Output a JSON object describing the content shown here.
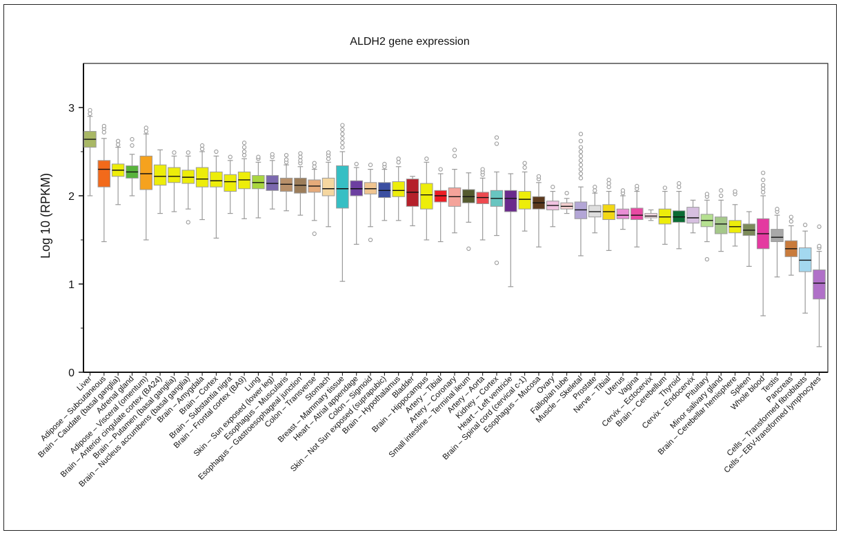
{
  "chart_data": {
    "type": "box",
    "title": "ALDH2 gene expression",
    "xlabel": "",
    "ylabel": "Log 10 (RPKM)",
    "ylim": [
      0,
      3.5
    ],
    "yticks": [
      0,
      1,
      2,
      3
    ],
    "grid": false,
    "legend": "none",
    "categories": [
      {
        "label": "Liver",
        "color": "#a9b865",
        "q1": 2.55,
        "median": 2.64,
        "q3": 2.73,
        "wlow": 2.0,
        "whigh": 2.9,
        "outliers": [
          2.93,
          2.97
        ]
      },
      {
        "label": "Adipose – Subcutaneous",
        "color": "#f26a1b",
        "q1": 2.1,
        "median": 2.3,
        "q3": 2.4,
        "wlow": 1.48,
        "whigh": 2.65,
        "outliers": [
          2.72,
          2.76,
          2.79
        ]
      },
      {
        "label": "Brain – Caudate (basal ganglia)",
        "color": "#eded0a",
        "q1": 2.22,
        "median": 2.29,
        "q3": 2.36,
        "wlow": 1.9,
        "whigh": 2.55,
        "outliers": [
          2.58,
          2.62
        ]
      },
      {
        "label": "Adrenal gland",
        "color": "#58b33c",
        "q1": 2.2,
        "median": 2.27,
        "q3": 2.34,
        "wlow": 2.0,
        "whigh": 2.47,
        "outliers": [
          2.57,
          2.64
        ]
      },
      {
        "label": "Adipose – Visceral (omentum)",
        "color": "#f5a21e",
        "q1": 2.07,
        "median": 2.25,
        "q3": 2.45,
        "wlow": 1.5,
        "whigh": 2.7,
        "outliers": [
          2.73,
          2.77
        ]
      },
      {
        "label": "Brain – Anterior cingulate cortex (BA24)",
        "color": "#eded0a",
        "q1": 2.12,
        "median": 2.22,
        "q3": 2.35,
        "wlow": 1.8,
        "whigh": 2.52,
        "outliers": []
      },
      {
        "label": "Brain – Putamen (basal ganglia)",
        "color": "#eded0a",
        "q1": 2.15,
        "median": 2.22,
        "q3": 2.32,
        "wlow": 1.82,
        "whigh": 2.45,
        "outliers": [
          2.49
        ]
      },
      {
        "label": "Brain – Nucleus accumbens (basal ganglia)",
        "color": "#eded0a",
        "q1": 2.14,
        "median": 2.21,
        "q3": 2.29,
        "wlow": 1.85,
        "whigh": 2.45,
        "outliers": [
          1.7,
          2.49
        ]
      },
      {
        "label": "Brain – Amygdala",
        "color": "#eded0a",
        "q1": 2.1,
        "median": 2.19,
        "q3": 2.32,
        "wlow": 1.73,
        "whigh": 2.5,
        "outliers": [
          2.53,
          2.57
        ]
      },
      {
        "label": "Brain – Cortex",
        "color": "#eded0a",
        "q1": 2.1,
        "median": 2.17,
        "q3": 2.27,
        "wlow": 1.52,
        "whigh": 2.45,
        "outliers": [
          2.5
        ]
      },
      {
        "label": "Brain – Substantia nigra",
        "color": "#eded0a",
        "q1": 2.05,
        "median": 2.16,
        "q3": 2.24,
        "wlow": 1.8,
        "whigh": 2.4,
        "outliers": [
          2.44
        ]
      },
      {
        "label": "Brain – Frontal cortex (BA9)",
        "color": "#eded0a",
        "q1": 2.08,
        "median": 2.18,
        "q3": 2.27,
        "wlow": 1.74,
        "whigh": 2.42,
        "outliers": [
          2.46,
          2.5,
          2.55,
          2.6
        ]
      },
      {
        "label": "Lung",
        "color": "#a9d63f",
        "q1": 2.08,
        "median": 2.15,
        "q3": 2.23,
        "wlow": 1.75,
        "whigh": 2.38,
        "outliers": [
          2.42,
          2.44
        ]
      },
      {
        "label": "Skin – Sun exposed (lower leg)",
        "color": "#7b68ae",
        "q1": 2.06,
        "median": 2.14,
        "q3": 2.23,
        "wlow": 1.85,
        "whigh": 2.4,
        "outliers": [
          2.44,
          2.47
        ]
      },
      {
        "label": "Esophagus – Muscularis",
        "color": "#b8906a",
        "q1": 2.05,
        "median": 2.13,
        "q3": 2.2,
        "wlow": 1.83,
        "whigh": 2.35,
        "outliers": [
          2.38,
          2.41,
          2.46
        ]
      },
      {
        "label": "Esophagus – Gastroesophageal junction",
        "color": "#9c7d5a",
        "q1": 2.03,
        "median": 2.12,
        "q3": 2.2,
        "wlow": 1.78,
        "whigh": 2.33,
        "outliers": [
          2.37,
          2.4,
          2.44,
          2.48
        ]
      },
      {
        "label": "Colon – Transverse",
        "color": "#e6ab7a",
        "q1": 2.04,
        "median": 2.11,
        "q3": 2.18,
        "wlow": 1.72,
        "whigh": 2.3,
        "outliers": [
          1.57,
          2.33,
          2.37
        ]
      },
      {
        "label": "Stomach",
        "color": "#f5d7a0",
        "q1": 2.0,
        "median": 2.08,
        "q3": 2.2,
        "wlow": 1.65,
        "whigh": 2.38,
        "outliers": [
          2.42,
          2.46,
          2.49
        ]
      },
      {
        "label": "Breast – Mammary tissue",
        "color": "#36bfc4",
        "q1": 1.86,
        "median": 2.08,
        "q3": 2.34,
        "wlow": 1.03,
        "whigh": 2.5,
        "outliers": [
          2.55,
          2.6,
          2.65,
          2.7,
          2.75,
          2.8
        ]
      },
      {
        "label": "Heart – Atrial appendage",
        "color": "#6c3fa0",
        "q1": 2.0,
        "median": 2.08,
        "q3": 2.17,
        "wlow": 1.45,
        "whigh": 2.32,
        "outliers": [
          2.36
        ]
      },
      {
        "label": "Colon – Sigmoid",
        "color": "#f0c590",
        "q1": 2.02,
        "median": 2.08,
        "q3": 2.15,
        "wlow": 1.65,
        "whigh": 2.3,
        "outliers": [
          1.5,
          2.35
        ]
      },
      {
        "label": "Skin – Not Sun exposed (suprapubic)",
        "color": "#3b4fa1",
        "q1": 1.98,
        "median": 2.06,
        "q3": 2.15,
        "wlow": 1.72,
        "whigh": 2.3,
        "outliers": [
          2.33,
          2.36
        ]
      },
      {
        "label": "Brain – Hypothalamus",
        "color": "#eded0a",
        "q1": 1.99,
        "median": 2.06,
        "q3": 2.16,
        "wlow": 1.72,
        "whigh": 2.33,
        "outliers": [
          2.38,
          2.42
        ]
      },
      {
        "label": "Bladder",
        "color": "#b5202b",
        "q1": 1.88,
        "median": 2.04,
        "q3": 2.19,
        "wlow": 1.66,
        "whigh": 2.22,
        "outliers": []
      },
      {
        "label": "Brain – Hippocampus",
        "color": "#eded0a",
        "q1": 1.85,
        "median": 2.01,
        "q3": 2.14,
        "wlow": 1.5,
        "whigh": 2.38,
        "outliers": [
          2.42
        ]
      },
      {
        "label": "Artery – Tibial",
        "color": "#ed1c24",
        "q1": 1.93,
        "median": 2.0,
        "q3": 2.06,
        "wlow": 1.48,
        "whigh": 2.25,
        "outliers": [
          2.3
        ]
      },
      {
        "label": "Artery – Coronary",
        "color": "#f4a39a",
        "q1": 1.88,
        "median": 1.99,
        "q3": 2.09,
        "wlow": 1.58,
        "whigh": 2.3,
        "outliers": [
          2.45,
          2.52
        ]
      },
      {
        "label": "Small intestine – Terminal ileum",
        "color": "#545a2e",
        "q1": 1.92,
        "median": 1.99,
        "q3": 2.07,
        "wlow": 1.7,
        "whigh": 2.26,
        "outliers": [
          1.4
        ]
      },
      {
        "label": "Artery – Aorta",
        "color": "#ed4a50",
        "q1": 1.91,
        "median": 1.98,
        "q3": 2.04,
        "wlow": 1.5,
        "whigh": 2.2,
        "outliers": [
          2.24,
          2.27,
          2.3
        ]
      },
      {
        "label": "Kidney – Cortex",
        "color": "#68c5c0",
        "q1": 1.88,
        "median": 1.97,
        "q3": 2.06,
        "wlow": 1.55,
        "whigh": 2.27,
        "outliers": [
          1.24,
          2.59,
          2.66
        ]
      },
      {
        "label": "Heart – Left ventricle",
        "color": "#6a2a8c",
        "q1": 1.82,
        "median": 1.97,
        "q3": 2.06,
        "wlow": 0.97,
        "whigh": 2.25,
        "outliers": []
      },
      {
        "label": "Brain – Spinal cord (cervical c-1)",
        "color": "#eded0a",
        "q1": 1.85,
        "median": 1.96,
        "q3": 2.05,
        "wlow": 1.6,
        "whigh": 2.27,
        "outliers": [
          2.32,
          2.37
        ]
      },
      {
        "label": "Esophagus – Mucosa",
        "color": "#5c3a1e",
        "q1": 1.85,
        "median": 1.92,
        "q3": 1.99,
        "wlow": 1.42,
        "whigh": 2.15,
        "outliers": [
          2.19,
          2.22
        ]
      },
      {
        "label": "Ovary",
        "color": "#f0c3e0",
        "q1": 1.84,
        "median": 1.89,
        "q3": 1.94,
        "wlow": 1.65,
        "whigh": 2.05,
        "outliers": [
          2.1
        ]
      },
      {
        "label": "Fallopian tube",
        "color": "#f5d0d0",
        "q1": 1.85,
        "median": 1.88,
        "q3": 1.92,
        "wlow": 1.8,
        "whigh": 1.97,
        "outliers": [
          2.03
        ]
      },
      {
        "label": "Muscle – Skeletal",
        "color": "#b3a6d6",
        "q1": 1.74,
        "median": 1.84,
        "q3": 1.93,
        "wlow": 1.32,
        "whigh": 2.1,
        "outliers": [
          2.2,
          2.25,
          2.3,
          2.35,
          2.4,
          2.45,
          2.5,
          2.55,
          2.62,
          2.7
        ]
      },
      {
        "label": "Prostate",
        "color": "#dedede",
        "q1": 1.76,
        "median": 1.82,
        "q3": 1.89,
        "wlow": 1.58,
        "whigh": 2.03,
        "outliers": [
          2.06,
          2.1
        ]
      },
      {
        "label": "Nerve – Tibial",
        "color": "#f2d814",
        "q1": 1.73,
        "median": 1.82,
        "q3": 1.9,
        "wlow": 1.38,
        "whigh": 2.05,
        "outliers": [
          2.1,
          2.14,
          2.18
        ]
      },
      {
        "label": "Uterus",
        "color": "#e98ed5",
        "q1": 1.74,
        "median": 1.78,
        "q3": 1.85,
        "wlow": 1.62,
        "whigh": 2.0,
        "outliers": [
          2.03,
          2.06
        ]
      },
      {
        "label": "Vagina",
        "color": "#e74aa3",
        "q1": 1.73,
        "median": 1.78,
        "q3": 1.86,
        "wlow": 1.42,
        "whigh": 2.05,
        "outliers": [
          2.08,
          2.11
        ]
      },
      {
        "label": "Cervix – Ectocervix",
        "color": "#f4d9e3",
        "q1": 1.75,
        "median": 1.77,
        "q3": 1.8,
        "wlow": 1.72,
        "whigh": 1.84,
        "outliers": []
      },
      {
        "label": "Brain – Cerebellum",
        "color": "#eded0a",
        "q1": 1.68,
        "median": 1.76,
        "q3": 1.85,
        "wlow": 1.45,
        "whigh": 2.05,
        "outliers": [
          2.09
        ]
      },
      {
        "label": "Thyroid",
        "color": "#0a6b33",
        "q1": 1.7,
        "median": 1.76,
        "q3": 1.83,
        "wlow": 1.4,
        "whigh": 2.05,
        "outliers": [
          2.1,
          2.14
        ]
      },
      {
        "label": "Cervix – Endocervix",
        "color": "#d6bfe0",
        "q1": 1.69,
        "median": 1.75,
        "q3": 1.87,
        "wlow": 1.58,
        "whigh": 1.95,
        "outliers": []
      },
      {
        "label": "Pituitary",
        "color": "#b5e090",
        "q1": 1.65,
        "median": 1.72,
        "q3": 1.79,
        "wlow": 1.48,
        "whigh": 1.95,
        "outliers": [
          1.28,
          1.99,
          2.02
        ]
      },
      {
        "label": "Minor salivary gland",
        "color": "#a5c88a",
        "q1": 1.57,
        "median": 1.68,
        "q3": 1.76,
        "wlow": 1.37,
        "whigh": 1.95,
        "outliers": [
          2.0,
          2.06
        ]
      },
      {
        "label": "Brain – Cerebellar hemisphere",
        "color": "#eded0a",
        "q1": 1.58,
        "median": 1.65,
        "q3": 1.72,
        "wlow": 1.43,
        "whigh": 1.9,
        "outliers": [
          2.02,
          2.05
        ]
      },
      {
        "label": "Spleen",
        "color": "#7c8b5a",
        "q1": 1.55,
        "median": 1.61,
        "q3": 1.68,
        "wlow": 1.2,
        "whigh": 1.82,
        "outliers": []
      },
      {
        "label": "Whole blood",
        "color": "#e43aa0",
        "q1": 1.4,
        "median": 1.57,
        "q3": 1.74,
        "wlow": 0.64,
        "whigh": 2.0,
        "outliers": [
          2.04,
          2.08,
          2.12,
          2.18,
          2.26
        ]
      },
      {
        "label": "Testis",
        "color": "#a8a8a8",
        "q1": 1.48,
        "median": 1.53,
        "q3": 1.62,
        "wlow": 1.08,
        "whigh": 1.78,
        "outliers": [
          1.82,
          1.85
        ]
      },
      {
        "label": "Pancreas",
        "color": "#c97b3c",
        "q1": 1.31,
        "median": 1.4,
        "q3": 1.49,
        "wlow": 1.1,
        "whigh": 1.66,
        "outliers": [
          1.71,
          1.76
        ]
      },
      {
        "label": "Cells – Transformed fibroblasts",
        "color": "#a3d8ef",
        "q1": 1.14,
        "median": 1.27,
        "q3": 1.41,
        "wlow": 0.67,
        "whigh": 1.6,
        "outliers": [
          1.67
        ]
      },
      {
        "label": "Cells – EBV-transformed lymphocytes",
        "color": "#b070c8",
        "q1": 0.83,
        "median": 1.01,
        "q3": 1.16,
        "wlow": 0.29,
        "whigh": 1.37,
        "outliers": [
          1.41,
          1.43,
          1.65
        ]
      }
    ]
  }
}
